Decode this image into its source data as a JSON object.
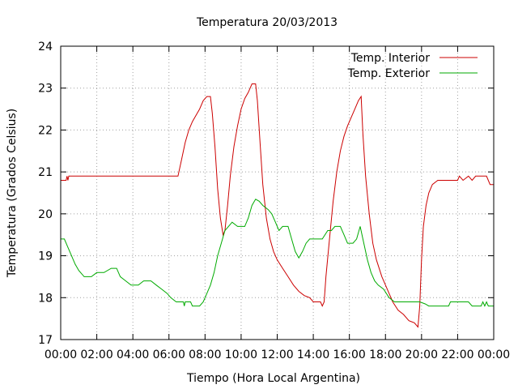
{
  "chart_data": {
    "type": "line",
    "title": "Temperatura 20/03/2013",
    "xlabel": "Tiempo (Hora Local Argentina)",
    "ylabel": "Temperatura (Grados Celsius)",
    "xlim": [
      0,
      24
    ],
    "ylim": [
      17,
      24
    ],
    "x_ticks": [
      "00:00",
      "02:00",
      "04:00",
      "06:00",
      "08:00",
      "10:00",
      "12:00",
      "14:00",
      "16:00",
      "18:00",
      "20:00",
      "22:00",
      "00:00"
    ],
    "y_ticks": [
      "17",
      "18",
      "19",
      "20",
      "21",
      "22",
      "23",
      "24"
    ],
    "grid": true,
    "legend_position": "top-right",
    "series": [
      {
        "name": "Temp. Interior",
        "color": "#cc0000",
        "points": [
          [
            0.0,
            20.8
          ],
          [
            0.3,
            20.8
          ],
          [
            0.35,
            20.9
          ],
          [
            0.4,
            20.8
          ],
          [
            0.45,
            20.9
          ],
          [
            2.0,
            20.9
          ],
          [
            4.0,
            20.9
          ],
          [
            6.0,
            20.9
          ],
          [
            6.5,
            20.9
          ],
          [
            6.7,
            21.3
          ],
          [
            6.9,
            21.7
          ],
          [
            7.1,
            22.0
          ],
          [
            7.3,
            22.2
          ],
          [
            7.5,
            22.35
          ],
          [
            7.7,
            22.5
          ],
          [
            7.9,
            22.7
          ],
          [
            8.1,
            22.8
          ],
          [
            8.3,
            22.8
          ],
          [
            8.4,
            22.4
          ],
          [
            8.55,
            21.6
          ],
          [
            8.7,
            20.6
          ],
          [
            8.85,
            19.9
          ],
          [
            9.0,
            19.5
          ],
          [
            9.1,
            19.6
          ],
          [
            9.25,
            20.2
          ],
          [
            9.4,
            20.9
          ],
          [
            9.6,
            21.6
          ],
          [
            9.8,
            22.1
          ],
          [
            10.0,
            22.5
          ],
          [
            10.2,
            22.75
          ],
          [
            10.4,
            22.9
          ],
          [
            10.6,
            23.1
          ],
          [
            10.8,
            23.1
          ],
          [
            10.9,
            22.7
          ],
          [
            11.05,
            21.7
          ],
          [
            11.2,
            20.7
          ],
          [
            11.4,
            19.9
          ],
          [
            11.6,
            19.4
          ],
          [
            11.8,
            19.1
          ],
          [
            12.0,
            18.9
          ],
          [
            12.3,
            18.7
          ],
          [
            12.6,
            18.5
          ],
          [
            12.9,
            18.3
          ],
          [
            13.2,
            18.15
          ],
          [
            13.5,
            18.05
          ],
          [
            13.8,
            18.0
          ],
          [
            14.0,
            17.9
          ],
          [
            14.4,
            17.9
          ],
          [
            14.5,
            17.8
          ],
          [
            14.6,
            17.9
          ],
          [
            14.7,
            18.5
          ],
          [
            14.9,
            19.4
          ],
          [
            15.1,
            20.3
          ],
          [
            15.3,
            21.0
          ],
          [
            15.5,
            21.5
          ],
          [
            15.7,
            21.85
          ],
          [
            15.9,
            22.1
          ],
          [
            16.1,
            22.3
          ],
          [
            16.3,
            22.5
          ],
          [
            16.5,
            22.7
          ],
          [
            16.65,
            22.8
          ],
          [
            16.75,
            21.9
          ],
          [
            16.9,
            20.9
          ],
          [
            17.1,
            20.0
          ],
          [
            17.3,
            19.3
          ],
          [
            17.5,
            18.9
          ],
          [
            17.8,
            18.5
          ],
          [
            18.1,
            18.2
          ],
          [
            18.4,
            17.9
          ],
          [
            18.7,
            17.7
          ],
          [
            19.0,
            17.6
          ],
          [
            19.3,
            17.45
          ],
          [
            19.6,
            17.4
          ],
          [
            19.8,
            17.3
          ],
          [
            19.9,
            17.8
          ],
          [
            20.0,
            18.9
          ],
          [
            20.1,
            19.7
          ],
          [
            20.25,
            20.2
          ],
          [
            20.4,
            20.5
          ],
          [
            20.6,
            20.7
          ],
          [
            20.9,
            20.8
          ],
          [
            21.5,
            20.8
          ],
          [
            22.0,
            20.8
          ],
          [
            22.1,
            20.9
          ],
          [
            22.3,
            20.8
          ],
          [
            22.6,
            20.9
          ],
          [
            22.8,
            20.8
          ],
          [
            23.0,
            20.9
          ],
          [
            23.6,
            20.9
          ],
          [
            23.7,
            20.8
          ],
          [
            23.8,
            20.7
          ],
          [
            24.0,
            20.7
          ]
        ]
      },
      {
        "name": "Temp. Exterior",
        "color": "#00aa00",
        "points": [
          [
            0.0,
            19.4
          ],
          [
            0.2,
            19.4
          ],
          [
            0.4,
            19.2
          ],
          [
            0.6,
            19.0
          ],
          [
            0.8,
            18.8
          ],
          [
            1.0,
            18.65
          ],
          [
            1.3,
            18.5
          ],
          [
            1.7,
            18.5
          ],
          [
            2.0,
            18.6
          ],
          [
            2.4,
            18.6
          ],
          [
            2.8,
            18.7
          ],
          [
            3.1,
            18.7
          ],
          [
            3.3,
            18.5
          ],
          [
            3.6,
            18.4
          ],
          [
            3.9,
            18.3
          ],
          [
            4.3,
            18.3
          ],
          [
            4.6,
            18.4
          ],
          [
            5.0,
            18.4
          ],
          [
            5.3,
            18.3
          ],
          [
            5.6,
            18.2
          ],
          [
            5.9,
            18.1
          ],
          [
            6.1,
            18.0
          ],
          [
            6.4,
            17.9
          ],
          [
            6.8,
            17.9
          ],
          [
            6.85,
            17.8
          ],
          [
            6.9,
            17.9
          ],
          [
            7.2,
            17.9
          ],
          [
            7.3,
            17.8
          ],
          [
            7.7,
            17.8
          ],
          [
            7.9,
            17.9
          ],
          [
            8.1,
            18.1
          ],
          [
            8.3,
            18.3
          ],
          [
            8.5,
            18.6
          ],
          [
            8.7,
            19.0
          ],
          [
            8.9,
            19.3
          ],
          [
            9.1,
            19.6
          ],
          [
            9.3,
            19.7
          ],
          [
            9.5,
            19.8
          ],
          [
            9.8,
            19.7
          ],
          [
            10.2,
            19.7
          ],
          [
            10.4,
            19.9
          ],
          [
            10.6,
            20.2
          ],
          [
            10.8,
            20.35
          ],
          [
            11.0,
            20.3
          ],
          [
            11.2,
            20.2
          ],
          [
            11.5,
            20.1
          ],
          [
            11.7,
            20.0
          ],
          [
            11.9,
            19.8
          ],
          [
            12.1,
            19.6
          ],
          [
            12.3,
            19.7
          ],
          [
            12.6,
            19.7
          ],
          [
            12.8,
            19.4
          ],
          [
            13.0,
            19.1
          ],
          [
            13.2,
            18.95
          ],
          [
            13.4,
            19.1
          ],
          [
            13.6,
            19.3
          ],
          [
            13.8,
            19.4
          ],
          [
            14.2,
            19.4
          ],
          [
            14.5,
            19.4
          ],
          [
            14.8,
            19.6
          ],
          [
            15.0,
            19.6
          ],
          [
            15.2,
            19.7
          ],
          [
            15.5,
            19.7
          ],
          [
            15.7,
            19.5
          ],
          [
            15.9,
            19.3
          ],
          [
            16.2,
            19.3
          ],
          [
            16.4,
            19.4
          ],
          [
            16.6,
            19.7
          ],
          [
            16.8,
            19.3
          ],
          [
            17.0,
            18.9
          ],
          [
            17.2,
            18.6
          ],
          [
            17.4,
            18.4
          ],
          [
            17.6,
            18.3
          ],
          [
            17.9,
            18.2
          ],
          [
            18.2,
            18.0
          ],
          [
            18.5,
            17.9
          ],
          [
            18.9,
            17.9
          ],
          [
            19.4,
            17.9
          ],
          [
            19.9,
            17.9
          ],
          [
            20.2,
            17.85
          ],
          [
            20.4,
            17.8
          ],
          [
            21.0,
            17.8
          ],
          [
            21.5,
            17.8
          ],
          [
            21.6,
            17.9
          ],
          [
            22.2,
            17.9
          ],
          [
            22.6,
            17.9
          ],
          [
            22.8,
            17.8
          ],
          [
            23.3,
            17.8
          ],
          [
            23.4,
            17.9
          ],
          [
            23.5,
            17.8
          ],
          [
            23.6,
            17.9
          ],
          [
            23.7,
            17.8
          ],
          [
            24.0,
            17.8
          ]
        ]
      }
    ]
  }
}
